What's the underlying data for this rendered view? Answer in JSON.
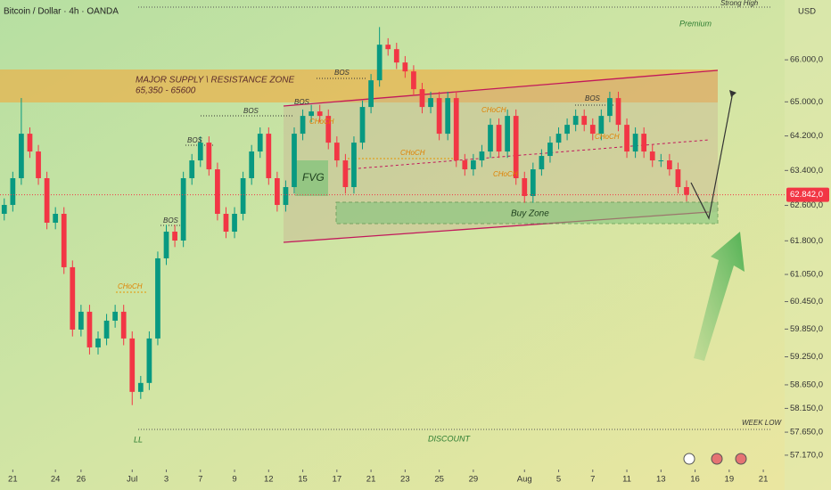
{
  "chart_data": {
    "type": "candlestick",
    "title": "Bitcoin / Dollar · 4h · OANDA",
    "currency": "USD",
    "log_scale": true,
    "up_color": "#089981",
    "down_color": "#f23645",
    "ylim": [
      56910,
      67450
    ],
    "xlim": [
      -0.5,
      91.5
    ],
    "yticks": [
      {
        "value": 66000,
        "label": "66.000,0"
      },
      {
        "value": 65000,
        "label": "65.000,0"
      },
      {
        "value": 64200,
        "label": "64.200,0"
      },
      {
        "value": 63400,
        "label": "63.400,0"
      },
      {
        "value": 62600,
        "label": "62.600,0"
      },
      {
        "value": 61800,
        "label": "61.800,0"
      },
      {
        "value": 61050,
        "label": "61.050,0"
      },
      {
        "value": 60450,
        "label": "60.450,0"
      },
      {
        "value": 59850,
        "label": "59.850,0"
      },
      {
        "value": 59250,
        "label": "59.250,0"
      },
      {
        "value": 58650,
        "label": "58.650,0"
      },
      {
        "value": 58150,
        "label": "58.150,0"
      },
      {
        "value": 57650,
        "label": "57.650,0"
      },
      {
        "value": 57170,
        "label": "57.170,0"
      }
    ],
    "xticks": [
      {
        "value": 1,
        "label": "21"
      },
      {
        "value": 6,
        "label": "24"
      },
      {
        "value": 9,
        "label": "26"
      },
      {
        "value": 15,
        "label": "Jul"
      },
      {
        "value": 19,
        "label": "3"
      },
      {
        "value": 23,
        "label": "7"
      },
      {
        "value": 27,
        "label": "9"
      },
      {
        "value": 31,
        "label": "12"
      },
      {
        "value": 35,
        "label": "15"
      },
      {
        "value": 39,
        "label": "17"
      },
      {
        "value": 43,
        "label": "21"
      },
      {
        "value": 47,
        "label": "23"
      },
      {
        "value": 51,
        "label": "25"
      },
      {
        "value": 55,
        "label": "29"
      },
      {
        "value": 61,
        "label": "Aug"
      },
      {
        "value": 65,
        "label": "5"
      },
      {
        "value": 69,
        "label": "7"
      },
      {
        "value": 73,
        "label": "11"
      },
      {
        "value": 77,
        "label": "13"
      },
      {
        "value": 81,
        "label": "16"
      },
      {
        "value": 85,
        "label": "19"
      },
      {
        "value": 89,
        "label": "21"
      }
    ],
    "open": [
      62409,
      62611,
      63222,
      64252,
      63838,
      63222,
      62208,
      62409,
      61210,
      59839,
      60228,
      59453,
      59646,
      60033,
      60228,
      59646,
      58500,
      58690,
      59646,
      61408,
      62006,
      61806,
      63222,
      63632,
      64044,
      63426,
      62409,
      62006,
      62409,
      63222,
      63838,
      64252,
      63222,
      62611,
      63018,
      64252,
      64669,
      64774,
      64669,
      64044,
      63632,
      63018,
      64044,
      64879,
      65511,
      66364,
      66256,
      65936,
      65723,
      65300,
      64879,
      65089,
      64252,
      65089,
      63632,
      63426,
      63632,
      63838,
      64460,
      63838,
      64669,
      63222,
      62814,
      63426,
      63735,
      64044,
      64252,
      64460,
      64669,
      64460,
      64252,
      64669,
      65089,
      64460,
      63838,
      64252,
      63838,
      63632,
      63632,
      63426,
      63018
    ],
    "high": [
      62760,
      63370,
      65090,
      64400,
      63990,
      63370,
      62560,
      62560,
      61360,
      60380,
      60380,
      59800,
      60180,
      60380,
      60380,
      59800,
      58840,
      59800,
      61560,
      62160,
      62160,
      63370,
      63780,
      64190,
      64190,
      63580,
      62560,
      62560,
      63370,
      63990,
      64400,
      64400,
      63370,
      63170,
      64400,
      64820,
      64930,
      64930,
      64820,
      64190,
      63780,
      64190,
      65030,
      65660,
      66790,
      66520,
      66410,
      66090,
      65870,
      65450,
      65240,
      65240,
      65240,
      65240,
      63780,
      63780,
      63990,
      64610,
      64610,
      64820,
      64820,
      63370,
      63580,
      63890,
      64190,
      64400,
      64610,
      64820,
      64820,
      64610,
      64820,
      65240,
      65240,
      64610,
      64400,
      64400,
      63990,
      63780,
      63780,
      63580,
      63170
    ],
    "low": [
      62260,
      62460,
      63070,
      63690,
      63070,
      62060,
      62060,
      61060,
      59690,
      59690,
      59300,
      59300,
      59500,
      59880,
      59500,
      58220,
      58350,
      58540,
      59500,
      61260,
      61660,
      61660,
      63070,
      63480,
      63280,
      62260,
      61860,
      61860,
      62260,
      63070,
      63690,
      63070,
      62460,
      62460,
      62870,
      64100,
      64520,
      64520,
      63890,
      63480,
      62870,
      62870,
      63890,
      64730,
      65360,
      66100,
      65780,
      65570,
      65150,
      64730,
      64730,
      64100,
      64100,
      63480,
      63280,
      63280,
      63480,
      63690,
      63690,
      63690,
      63070,
      62660,
      62660,
      63280,
      63580,
      63890,
      64100,
      64310,
      64310,
      64100,
      64100,
      64520,
      64310,
      63690,
      63690,
      63690,
      63480,
      63480,
      63280,
      62870,
      62690
    ],
    "close": [
      62611,
      63222,
      64252,
      63838,
      63222,
      62208,
      62409,
      61210,
      59839,
      60228,
      59453,
      59646,
      60033,
      60228,
      59646,
      58500,
      58690,
      59646,
      61408,
      62006,
      61806,
      63222,
      63632,
      64044,
      63426,
      62409,
      62006,
      62409,
      63222,
      63838,
      64252,
      63222,
      62611,
      63018,
      64252,
      64669,
      64774,
      64669,
      64044,
      63632,
      63018,
      64044,
      64879,
      65511,
      66364,
      66256,
      65936,
      65723,
      65300,
      64879,
      65089,
      64252,
      65089,
      63632,
      63426,
      63632,
      63838,
      64460,
      63838,
      64669,
      63222,
      62814,
      63426,
      63735,
      64044,
      64252,
      64460,
      64669,
      64460,
      64252,
      64669,
      65089,
      64460,
      63838,
      64252,
      63838,
      63632,
      63632,
      63426,
      63018,
      62842
    ],
    "current_price": {
      "value": 62842,
      "label": "62.842,0"
    },
    "annotations": [
      "Strong High",
      "Premium",
      "MAJOR SUPPLY \\ RESISTANCE ZONE",
      "65,350 - 65600",
      "BOS",
      "BOS",
      "BOS",
      "BOS",
      "BOS",
      "BOS",
      "CHoCH",
      "CHoCH",
      "CHoCH",
      "CHoCH",
      "CHoCH",
      "CHoCH",
      "FVG",
      "Buy Zone",
      "LL",
      "DISCOUNT",
      "WEEK LOW"
    ]
  }
}
